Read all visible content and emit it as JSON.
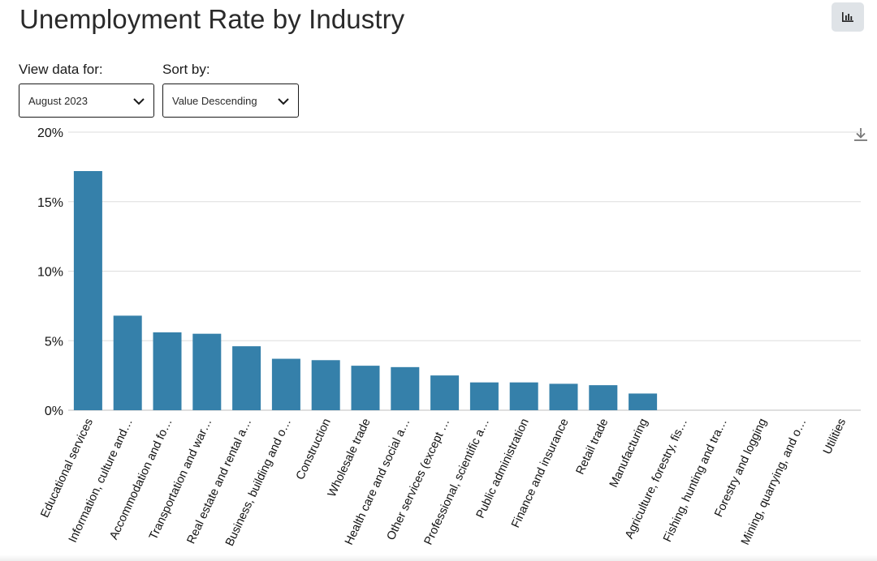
{
  "page": {
    "title": "Unemployment Rate by Industry"
  },
  "controls": {
    "view_label": "View data for:",
    "view_value": "August 2023",
    "sort_label": "Sort by:",
    "sort_value": "Value Descending"
  },
  "icons": {
    "chart_toggle": "bar-chart-icon",
    "download": "download-icon",
    "dropdown": "chevron-down-icon"
  },
  "colors": {
    "bar": "#3580aa",
    "grid": "#dedede",
    "axis": "#bfbfbf"
  },
  "chart_data": {
    "type": "bar",
    "title": "Unemployment Rate by Industry",
    "xlabel": "",
    "ylabel": "",
    "ylim": [
      0,
      20
    ],
    "y_ticks": [
      0,
      5,
      10,
      15,
      20
    ],
    "y_tick_labels": [
      "0%",
      "5%",
      "10%",
      "15%",
      "20%"
    ],
    "grid": true,
    "categories": [
      "Educational services",
      "Information, culture and…",
      "Accommodation and fo…",
      "Transportation and war…",
      "Real estate and rental a…",
      "Business, building and o…",
      "Construction",
      "Wholesale trade",
      "Health care and social a…",
      "Other services (except …",
      "Professional, scientific a…",
      "Public administration",
      "Finance and insurance",
      "Retail trade",
      "Manufacturing",
      "Agriculture, forestry, fis…",
      "Fishing, hunting and tra…",
      "Forestry and logging",
      "Mining, quarrying, and o…",
      "Utilities"
    ],
    "values": [
      17.2,
      6.8,
      5.6,
      5.5,
      4.6,
      3.7,
      3.6,
      3.2,
      3.1,
      2.5,
      2.0,
      2.0,
      1.9,
      1.8,
      1.2,
      0,
      0,
      0,
      0,
      0
    ]
  }
}
